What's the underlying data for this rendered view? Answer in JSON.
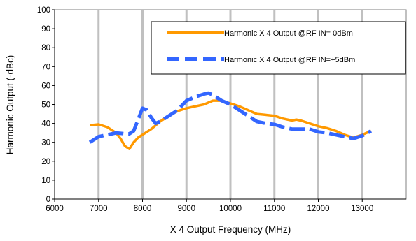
{
  "chart_data": {
    "type": "line",
    "xlabel": "X 4 Output Frequency (MHz)",
    "ylabel": "Harmonic Output (-dBc)",
    "xlim": [
      6000,
      14000
    ],
    "ylim": [
      0,
      100
    ],
    "xticks": [
      "6000",
      "7000",
      "8000",
      "9000",
      "10000",
      "11000",
      "12000",
      "13000"
    ],
    "yticks": [
      "0",
      "10",
      "20",
      "30",
      "40",
      "50",
      "60",
      "70",
      "80",
      "90",
      "100"
    ],
    "grid": "vertical",
    "legend_position": "top-right",
    "series": [
      {
        "name": "Harmonic X 4 Output @RF IN= 0dBm",
        "color": "#FF9900",
        "dash": "solid",
        "x": [
          6800,
          7000,
          7200,
          7400,
          7500,
          7600,
          7700,
          7800,
          7900,
          8000,
          8200,
          8400,
          8600,
          8800,
          9000,
          9200,
          9400,
          9600,
          9800,
          10000,
          10200,
          10400,
          10600,
          10800,
          11000,
          11200,
          11400,
          11500,
          11600,
          11800,
          12000,
          12200,
          12400,
          12600,
          12800,
          13000,
          13200
        ],
        "y": [
          39,
          39.5,
          38,
          35,
          32,
          28,
          26.5,
          30,
          32.5,
          34,
          37,
          41,
          44,
          46.5,
          48,
          49,
          50,
          52,
          52,
          50.5,
          49,
          47,
          45,
          44.5,
          44,
          42.5,
          41.5,
          42,
          41.5,
          40,
          38.5,
          37.5,
          36,
          34,
          32.5,
          34,
          36
        ]
      },
      {
        "name": "Harmonic X 4 Output @RF IN=+5dBm",
        "color": "#3366FF",
        "dash": "dashed",
        "x": [
          6800,
          7000,
          7200,
          7400,
          7600,
          7700,
          7800,
          7900,
          8000,
          8100,
          8200,
          8300,
          8400,
          8600,
          8800,
          9000,
          9200,
          9400,
          9500,
          9600,
          9800,
          10000,
          10200,
          10400,
          10600,
          10800,
          11000,
          11200,
          11400,
          11600,
          11800,
          12000,
          12200,
          12400,
          12600,
          12800,
          13000,
          13200
        ],
        "y": [
          30,
          33,
          34,
          35,
          34.5,
          34.5,
          36,
          42,
          48,
          47,
          43,
          40,
          41,
          44,
          47,
          52,
          54,
          55.5,
          56,
          55,
          52,
          50,
          47,
          44,
          41,
          40,
          39.5,
          38,
          37,
          37,
          37,
          35.5,
          35,
          34,
          33,
          32,
          33.5,
          36
        ]
      }
    ]
  }
}
